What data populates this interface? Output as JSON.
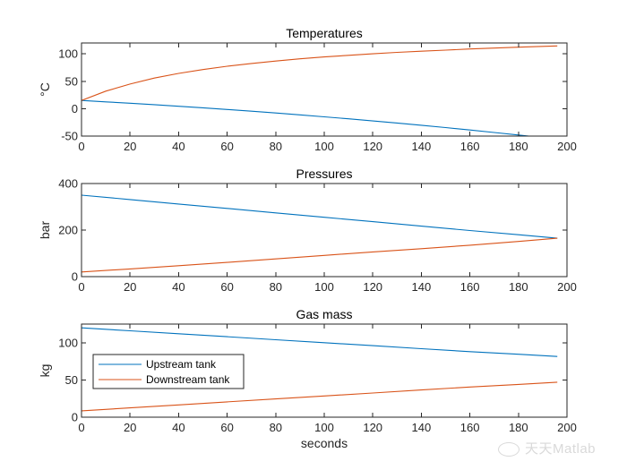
{
  "chart_data": [
    {
      "type": "line",
      "title": "Temperatures",
      "xlabel": "",
      "ylabel": "°C",
      "xlim": [
        0,
        200
      ],
      "ylim": [
        -50,
        120
      ],
      "xticks": [
        0,
        20,
        40,
        60,
        80,
        100,
        120,
        140,
        160,
        180,
        200
      ],
      "yticks": [
        -50,
        0,
        50,
        100
      ],
      "grid": false,
      "x": [
        0,
        10,
        20,
        30,
        40,
        50,
        60,
        70,
        80,
        90,
        100,
        110,
        120,
        130,
        140,
        150,
        160,
        170,
        180,
        190,
        196
      ],
      "series": [
        {
          "name": "Upstream tank",
          "color": "#0072bd",
          "values": [
            15,
            12.5,
            10,
            7.3,
            4.5,
            1.6,
            -1.5,
            -4.6,
            -7.9,
            -11.3,
            -14.8,
            -18.5,
            -22.3,
            -26.2,
            -30.3,
            -34.5,
            -38.9,
            -43.4,
            -48,
            -52.7,
            -55.5
          ]
        },
        {
          "name": "Downstream tank",
          "color": "#d95319",
          "values": [
            15,
            32,
            45,
            56,
            64.5,
            71.5,
            77.5,
            82.5,
            87,
            91,
            94.5,
            97.5,
            100.3,
            102.8,
            105,
            107,
            109,
            110.7,
            112.3,
            113.8,
            114.6
          ]
        }
      ]
    },
    {
      "type": "line",
      "title": "Pressures",
      "xlabel": "",
      "ylabel": "bar",
      "xlim": [
        0,
        200
      ],
      "ylim": [
        0,
        400
      ],
      "xticks": [
        0,
        20,
        40,
        60,
        80,
        100,
        120,
        140,
        160,
        180,
        200
      ],
      "yticks": [
        0,
        200,
        400
      ],
      "grid": false,
      "x": [
        0,
        20,
        40,
        60,
        80,
        100,
        120,
        140,
        160,
        180,
        196
      ],
      "series": [
        {
          "name": "Upstream tank",
          "color": "#0072bd",
          "values": [
            350,
            331,
            312,
            293,
            274,
            255,
            236,
            217,
            198,
            180,
            165
          ]
        },
        {
          "name": "Downstream tank",
          "color": "#d95319",
          "values": [
            20,
            33,
            47,
            61,
            76,
            91,
            106,
            120,
            135,
            151,
            165
          ]
        }
      ]
    },
    {
      "type": "line",
      "title": "Gas mass",
      "xlabel": "seconds",
      "ylabel": "kg",
      "xlim": [
        0,
        200
      ],
      "ylim": [
        0,
        125
      ],
      "xticks": [
        0,
        20,
        40,
        60,
        80,
        100,
        120,
        140,
        160,
        180,
        200
      ],
      "yticks": [
        0,
        50,
        100
      ],
      "grid": false,
      "legend": {
        "entries": [
          "Upstream tank",
          "Downstream tank"
        ],
        "placement": "middle-left"
      },
      "x": [
        0,
        20,
        40,
        60,
        80,
        100,
        120,
        140,
        160,
        180,
        196
      ],
      "series": [
        {
          "name": "Upstream tank",
          "color": "#0072bd",
          "values": [
            120,
            116,
            112,
            108,
            104,
            100,
            96,
            92,
            88,
            84.5,
            81.5
          ]
        },
        {
          "name": "Downstream tank",
          "color": "#d95319",
          "values": [
            8.5,
            12.5,
            16.5,
            20.5,
            24.5,
            28.5,
            32.5,
            36.5,
            40.5,
            44,
            47
          ]
        }
      ]
    }
  ],
  "watermark": {
    "icon": "wechat-icon",
    "text": "天天Matlab"
  }
}
